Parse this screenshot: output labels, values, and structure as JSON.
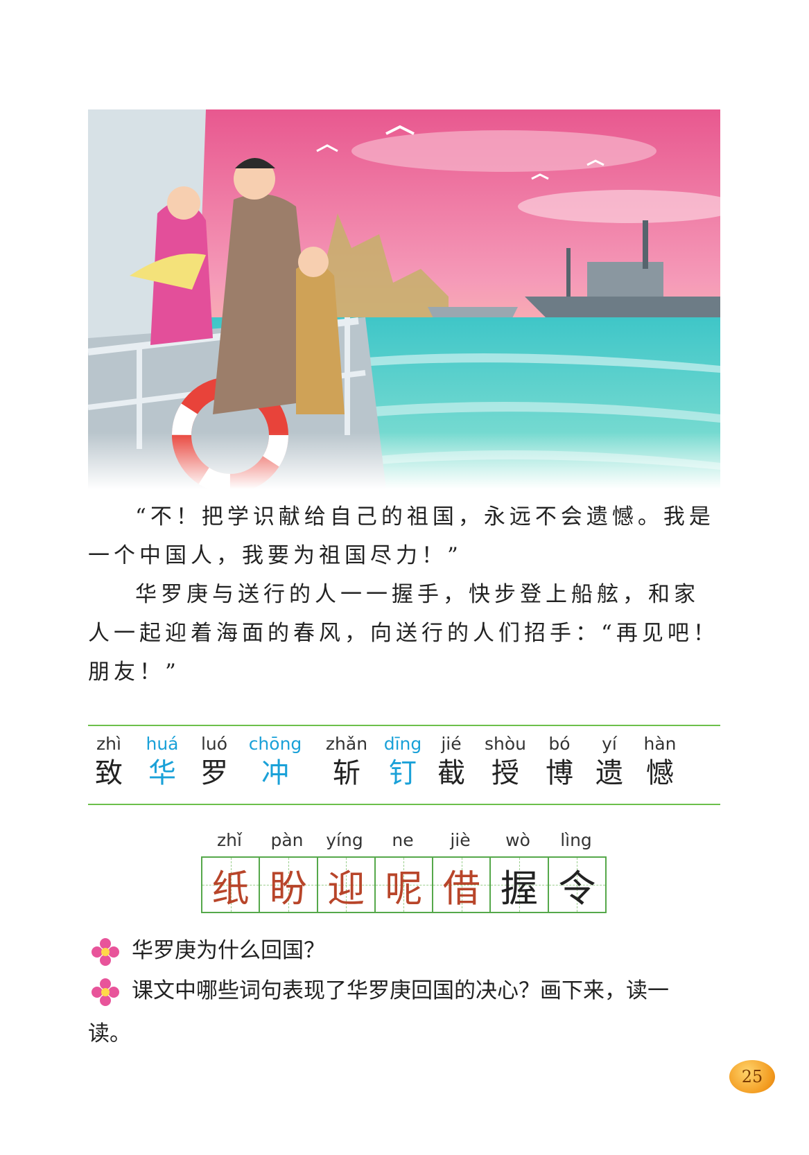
{
  "paragraphs": {
    "p1": "“不！把学识献给自己的祖国，永远不会遗憾。我是一个中国人，我要为祖国尽力！”",
    "p2": "华罗庚与送行的人一一握手，快步登上船舷，和家人一起迎着海面的春风，向送行的人们招手：“再见吧！朋友！”"
  },
  "words": [
    {
      "pinyin": "zhì",
      "hanzi": "致"
    },
    {
      "pinyin": "huá",
      "hanzi": "华"
    },
    {
      "pinyin": "luó",
      "hanzi": "罗"
    },
    {
      "pinyin": "chōng",
      "hanzi": "冲"
    },
    {
      "pinyin": "zhǎn",
      "hanzi": "斩"
    },
    {
      "pinyin": "dīng",
      "hanzi": "钉"
    },
    {
      "pinyin": "jié",
      "hanzi": "截"
    },
    {
      "pinyin": "shòu",
      "hanzi": "授"
    },
    {
      "pinyin": "bó",
      "hanzi": "博"
    },
    {
      "pinyin": "yí",
      "hanzi": "遗"
    },
    {
      "pinyin": "hàn",
      "hanzi": "憾"
    }
  ],
  "grid": [
    {
      "pinyin": "zhǐ",
      "hanzi": "纸"
    },
    {
      "pinyin": "pàn",
      "hanzi": "盼"
    },
    {
      "pinyin": "yíng",
      "hanzi": "迎"
    },
    {
      "pinyin": "ne",
      "hanzi": "呢"
    },
    {
      "pinyin": "jiè",
      "hanzi": "借"
    },
    {
      "pinyin": "wò",
      "hanzi": "握"
    },
    {
      "pinyin": "lìng",
      "hanzi": "令"
    }
  ],
  "questions": {
    "q1": "华罗庚为什么回国？",
    "q2": "课文中哪些词句表现了华罗庚回国的决心？画下来，读一",
    "q2_tail": "读。"
  },
  "page_number": "25",
  "colors": {
    "rule_green": "#6cbf4a",
    "pinyin_blue": "#1aa1d8",
    "grid_char": "#b8452a",
    "page_badge": "#f29a1e"
  }
}
